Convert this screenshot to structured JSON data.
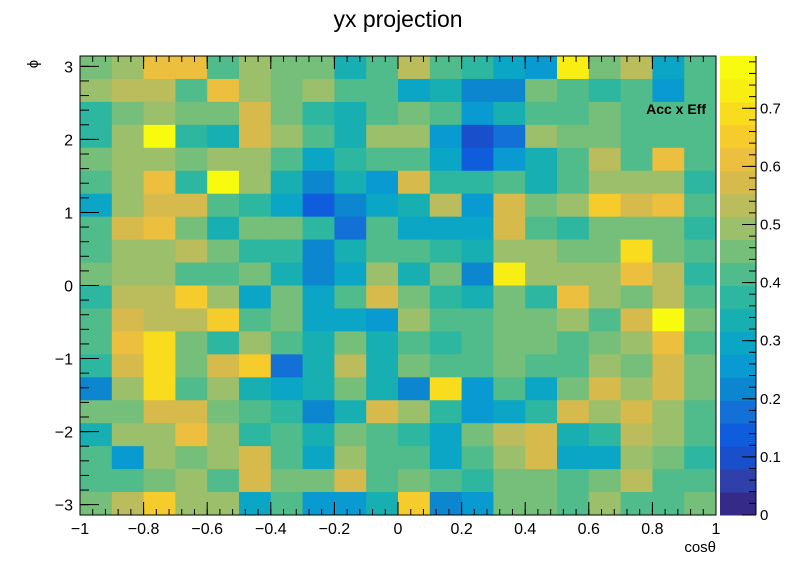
{
  "chart_data": {
    "type": "heatmap",
    "title": "yx projection",
    "xlabel": "cosθ",
    "ylabel": "ϕ",
    "annotation": "Acc x Eff",
    "xlim": [
      -1,
      1
    ],
    "ylim": [
      -3.14159,
      3.14159
    ],
    "zlim": [
      0,
      0.79
    ],
    "x_bins": 20,
    "y_bins": 20,
    "x_ticks": [
      -1,
      -0.8,
      -0.6,
      -0.4,
      -0.2,
      0,
      0.2,
      0.4,
      0.6,
      0.8,
      1
    ],
    "x_tick_labels": [
      "−1",
      "−0.8",
      "−0.6",
      "−0.4",
      "−0.2",
      "0",
      "0.2",
      "0.4",
      "0.6",
      "0.8",
      "1"
    ],
    "y_ticks": [
      -3,
      -2,
      -1,
      0,
      1,
      2,
      3
    ],
    "y_tick_labels": [
      "−3",
      "−2",
      "−1",
      "0",
      "1",
      "2",
      "3"
    ],
    "z_ticks": [
      0,
      0.1,
      0.2,
      0.3,
      0.4,
      0.5,
      0.6,
      0.7
    ],
    "z_tick_labels": [
      "0",
      "0.1",
      "0.2",
      "0.3",
      "0.4",
      "0.5",
      "0.6",
      "0.7"
    ],
    "palette": [
      "#352a87",
      "#3040aa",
      "#1a4fcc",
      "#0f5cdd",
      "#1270d7",
      "#0d86d0",
      "#089ad0",
      "#0ba5c6",
      "#17afb2",
      "#2eb7a0",
      "#50bc8b",
      "#75bf7a",
      "#9bbf6a",
      "#bbbc5c",
      "#d6ba4c",
      "#ecbf3e",
      "#f6cb2c",
      "#f9dc1e",
      "#f9ee13",
      "#f9fb0e"
    ],
    "grid": false,
    "values_row_order": "top-to-bottom (phi from 3.14 down to -3.14), columns left-to-right (cosθ from -1 to 1)",
    "values": [
      [
        0.46,
        0.5,
        0.62,
        0.6,
        0.4,
        0.5,
        0.46,
        0.46,
        0.32,
        0.42,
        0.55,
        0.42,
        0.38,
        0.28,
        0.26,
        0.72,
        0.45,
        0.52,
        0.28,
        0.4
      ],
      [
        0.48,
        0.55,
        0.55,
        0.42,
        0.62,
        0.48,
        0.46,
        0.48,
        0.4,
        0.42,
        0.3,
        0.35,
        0.22,
        0.22,
        0.46,
        0.4,
        0.38,
        0.4,
        0.26,
        0.42
      ],
      [
        0.38,
        0.46,
        0.5,
        0.46,
        0.46,
        0.58,
        0.44,
        0.38,
        0.33,
        0.42,
        0.46,
        0.4,
        0.26,
        0.32,
        0.42,
        0.4,
        0.44,
        0.4,
        0.4,
        0.42
      ],
      [
        0.36,
        0.48,
        0.76,
        0.38,
        0.32,
        0.58,
        0.48,
        0.4,
        0.34,
        0.48,
        0.5,
        0.26,
        0.1,
        0.16,
        0.48,
        0.45,
        0.44,
        0.4,
        0.42,
        0.42
      ],
      [
        0.46,
        0.5,
        0.5,
        0.46,
        0.5,
        0.5,
        0.42,
        0.28,
        0.36,
        0.4,
        0.4,
        0.3,
        0.12,
        0.26,
        0.34,
        0.4,
        0.54,
        0.4,
        0.6,
        0.42
      ],
      [
        0.42,
        0.5,
        0.62,
        0.36,
        0.78,
        0.48,
        0.34,
        0.2,
        0.32,
        0.26,
        0.56,
        0.38,
        0.36,
        0.4,
        0.34,
        0.42,
        0.48,
        0.5,
        0.5,
        0.36
      ],
      [
        0.3,
        0.48,
        0.58,
        0.58,
        0.42,
        0.36,
        0.28,
        0.14,
        0.22,
        0.28,
        0.34,
        0.54,
        0.26,
        0.58,
        0.46,
        0.48,
        0.66,
        0.58,
        0.6,
        0.42
      ],
      [
        0.42,
        0.58,
        0.6,
        0.46,
        0.32,
        0.46,
        0.46,
        0.36,
        0.16,
        0.4,
        0.3,
        0.3,
        0.3,
        0.56,
        0.42,
        0.38,
        0.46,
        0.46,
        0.46,
        0.38
      ],
      [
        0.4,
        0.48,
        0.48,
        0.54,
        0.44,
        0.36,
        0.38,
        0.2,
        0.32,
        0.42,
        0.4,
        0.38,
        0.34,
        0.5,
        0.48,
        0.46,
        0.44,
        0.7,
        0.46,
        0.4
      ],
      [
        0.46,
        0.48,
        0.48,
        0.4,
        0.4,
        0.46,
        0.34,
        0.2,
        0.28,
        0.48,
        0.32,
        0.44,
        0.22,
        0.74,
        0.5,
        0.48,
        0.5,
        0.6,
        0.52,
        0.36
      ],
      [
        0.38,
        0.52,
        0.54,
        0.66,
        0.5,
        0.28,
        0.44,
        0.28,
        0.4,
        0.58,
        0.46,
        0.36,
        0.34,
        0.44,
        0.38,
        0.6,
        0.5,
        0.46,
        0.52,
        0.4
      ],
      [
        0.42,
        0.58,
        0.52,
        0.52,
        0.66,
        0.42,
        0.46,
        0.3,
        0.28,
        0.26,
        0.48,
        0.4,
        0.42,
        0.46,
        0.44,
        0.48,
        0.42,
        0.56,
        0.78,
        0.44
      ],
      [
        0.4,
        0.62,
        0.7,
        0.46,
        0.36,
        0.48,
        0.4,
        0.34,
        0.44,
        0.34,
        0.42,
        0.38,
        0.4,
        0.44,
        0.46,
        0.42,
        0.46,
        0.48,
        0.6,
        0.42
      ],
      [
        0.38,
        0.58,
        0.7,
        0.44,
        0.58,
        0.66,
        0.16,
        0.34,
        0.52,
        0.34,
        0.44,
        0.42,
        0.4,
        0.46,
        0.4,
        0.42,
        0.5,
        0.44,
        0.58,
        0.44
      ],
      [
        0.2,
        0.5,
        0.68,
        0.42,
        0.48,
        0.34,
        0.28,
        0.34,
        0.46,
        0.34,
        0.22,
        0.68,
        0.24,
        0.4,
        0.3,
        0.44,
        0.56,
        0.48,
        0.58,
        0.44
      ],
      [
        0.44,
        0.46,
        0.58,
        0.58,
        0.46,
        0.4,
        0.38,
        0.22,
        0.34,
        0.56,
        0.5,
        0.36,
        0.26,
        0.3,
        0.36,
        0.56,
        0.5,
        0.58,
        0.48,
        0.4
      ],
      [
        0.34,
        0.48,
        0.48,
        0.6,
        0.48,
        0.38,
        0.4,
        0.34,
        0.44,
        0.4,
        0.38,
        0.3,
        0.44,
        0.54,
        0.56,
        0.34,
        0.38,
        0.54,
        0.48,
        0.42
      ],
      [
        0.4,
        0.26,
        0.5,
        0.44,
        0.5,
        0.56,
        0.42,
        0.3,
        0.48,
        0.42,
        0.4,
        0.3,
        0.42,
        0.48,
        0.56,
        0.3,
        0.3,
        0.48,
        0.46,
        0.38
      ],
      [
        0.4,
        0.4,
        0.46,
        0.48,
        0.4,
        0.56,
        0.46,
        0.46,
        0.58,
        0.4,
        0.44,
        0.4,
        0.38,
        0.46,
        0.44,
        0.4,
        0.46,
        0.54,
        0.42,
        0.4
      ],
      [
        0.46,
        0.54,
        0.66,
        0.48,
        0.48,
        0.3,
        0.4,
        0.24,
        0.24,
        0.32,
        0.64,
        0.22,
        0.26,
        0.46,
        0.46,
        0.4,
        0.5,
        0.42,
        0.4,
        0.44
      ]
    ]
  }
}
